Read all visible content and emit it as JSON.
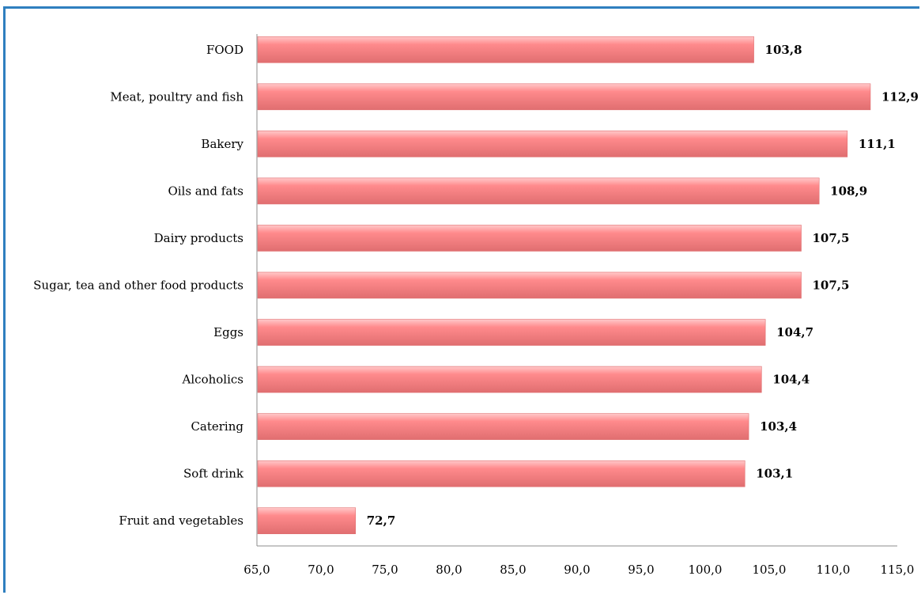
{
  "chart_data": {
    "type": "bar",
    "orientation": "horizontal",
    "categories": [
      "FOOD",
      "Meat, poultry and fish",
      "Bakery",
      "Oils and fats",
      "Dairy products",
      "Sugar, tea and other food products",
      "Eggs",
      "Alcoholics",
      "Catering",
      "Soft drink",
      "Fruit and vegetables"
    ],
    "values": [
      103.8,
      112.9,
      111.1,
      108.9,
      107.5,
      107.5,
      104.7,
      104.4,
      103.4,
      103.1,
      72.7
    ],
    "value_labels": [
      "103,8",
      "112,9",
      "111,1",
      "108,9",
      "107,5",
      "107,5",
      "104,7",
      "104,4",
      "103,4",
      "103,1",
      "72,7"
    ],
    "xlim": [
      65,
      115
    ],
    "ticks": [
      "65,0",
      "70,0",
      "75,0",
      "80,0",
      "85,0",
      "90,0",
      "95,0",
      "100,0",
      "105,0",
      "110,0",
      "115,0"
    ],
    "title": "",
    "xlabel": "",
    "ylabel": "",
    "grid": false,
    "colors": {
      "bar": "#ff8a8c",
      "bar_highlight": "#ffc9ca",
      "bar_shadow": "#e06e70",
      "frame": "#2f7fbf",
      "axis": "#8c8c8c"
    }
  }
}
